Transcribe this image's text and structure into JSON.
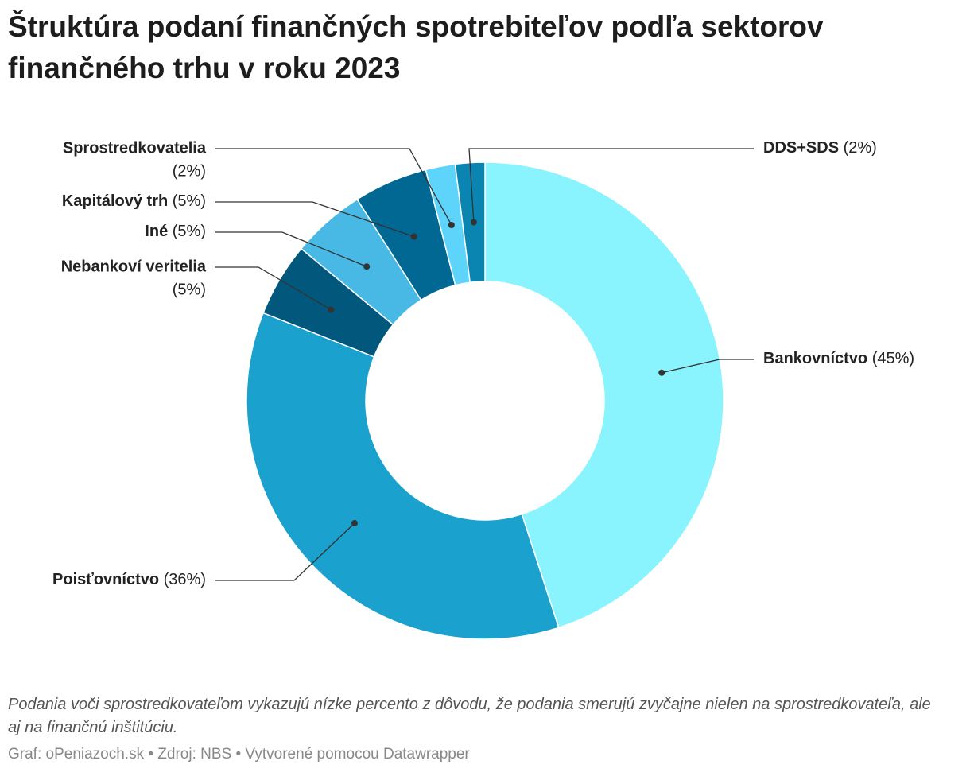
{
  "chart_data": {
    "type": "donut",
    "title": "Štruktúra podaní finančných spotrebiteľov podľa sektorov finančného trhu v roku 2023",
    "categories": [
      "Bankovníctvo",
      "Poisťovníctvo",
      "Nebankoví veritelia",
      "Iné",
      "Kapitálový trh",
      "Sprostredkovatelia",
      "DDS+SDS"
    ],
    "values": [
      45,
      36,
      5,
      5,
      5,
      2,
      2
    ],
    "value_labels": [
      "(45%)",
      "(36%)",
      "(5%)",
      "(5%)",
      "(5%)",
      "(2%)",
      "(2%)"
    ],
    "colors": [
      "#8af4fe",
      "#1ba1cd",
      "#02587c",
      "#48b9e5",
      "#006893",
      "#5fd4fa",
      "#0a84b0"
    ],
    "note": "Podania voči sprostredkovateľom vykazujú nízke percento z dôvodu, že podania smerujú zvyčajne nielen na sprostredkovateľa, ale aj na finančnú inštitúciu.",
    "credit": "Graf: oPeniazoch.sk • Zdroj: NBS • Vytvorené pomocou Datawrapper"
  }
}
